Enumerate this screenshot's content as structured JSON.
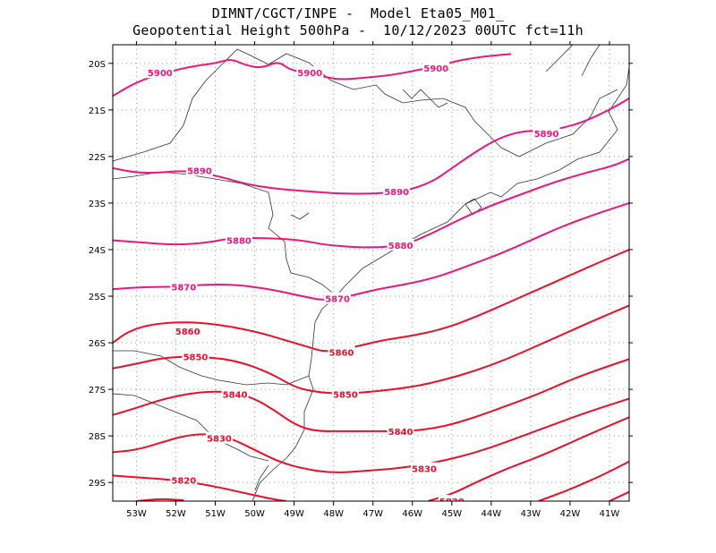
{
  "header": {
    "line1": "DIMNT/CGCT/INPE -  Model Eta05_M01_",
    "line2": "Geopotential Height 500hPa -  10/12/2023 00UTC fct=11h"
  },
  "chart_data": {
    "type": "contour-map",
    "title": "Geopotential Height 500hPa",
    "xlim": [
      -53.6,
      -40.5
    ],
    "ylim": [
      -29.4,
      -19.6
    ],
    "x_ticks": [
      "53W",
      "52W",
      "51W",
      "50W",
      "49W",
      "48W",
      "47W",
      "46W",
      "45W",
      "44W",
      "43W",
      "42W",
      "41W"
    ],
    "y_ticks": [
      "20S",
      "21S",
      "22S",
      "23S",
      "24S",
      "25S",
      "26S",
      "27S",
      "28S",
      "29S"
    ],
    "grid": true,
    "colors": {
      "high": "#e8187e",
      "low": "#e8102a",
      "coast": "#333333"
    },
    "contours": [
      {
        "level": "5900",
        "label": "5900",
        "label_points": [
          [
            -52.4,
            -20.2
          ],
          [
            -48.6,
            -20.2
          ],
          [
            -45.4,
            -20.1
          ]
        ],
        "points": [
          [
            -53.6,
            -20.7
          ],
          [
            -53.0,
            -20.4
          ],
          [
            -52.3,
            -20.2
          ],
          [
            -51.5,
            -20.05
          ],
          [
            -51.0,
            -20.0
          ],
          [
            -50.6,
            -19.9
          ],
          [
            -50.2,
            -20.05
          ],
          [
            -49.8,
            -20.1
          ],
          [
            -49.4,
            -19.95
          ],
          [
            -49.1,
            -20.15
          ],
          [
            -48.6,
            -20.2
          ],
          [
            -48.2,
            -20.3
          ],
          [
            -47.8,
            -20.35
          ],
          [
            -47.1,
            -20.3
          ],
          [
            -46.5,
            -20.25
          ],
          [
            -45.9,
            -20.15
          ],
          [
            -45.3,
            -20.05
          ],
          [
            -44.9,
            -19.95
          ],
          [
            -44.2,
            -19.85
          ],
          [
            -43.5,
            -19.8
          ]
        ]
      },
      {
        "level": "5890",
        "label": "5890",
        "label_points": [
          [
            -51.4,
            -22.3
          ],
          [
            -46.4,
            -22.75
          ],
          [
            -42.6,
            -21.5
          ]
        ],
        "points": [
          [
            -53.6,
            -22.25
          ],
          [
            -53.0,
            -22.35
          ],
          [
            -52.4,
            -22.35
          ],
          [
            -51.8,
            -22.3
          ],
          [
            -51.0,
            -22.4
          ],
          [
            -50.2,
            -22.6
          ],
          [
            -49.4,
            -22.7
          ],
          [
            -48.6,
            -22.75
          ],
          [
            -47.8,
            -22.8
          ],
          [
            -47.0,
            -22.8
          ],
          [
            -46.2,
            -22.75
          ],
          [
            -45.5,
            -22.55
          ],
          [
            -45.0,
            -22.25
          ],
          [
            -44.4,
            -21.9
          ],
          [
            -43.8,
            -21.6
          ],
          [
            -43.2,
            -21.45
          ],
          [
            -42.6,
            -21.45
          ],
          [
            -42.0,
            -21.35
          ],
          [
            -41.5,
            -21.2
          ],
          [
            -40.9,
            -20.95
          ],
          [
            -40.5,
            -20.75
          ]
        ]
      },
      {
        "level": "5880",
        "label": "5880",
        "label_points": [
          [
            -50.4,
            -23.8
          ],
          [
            -46.3,
            -23.9
          ]
        ],
        "points": [
          [
            -53.6,
            -23.8
          ],
          [
            -52.8,
            -23.85
          ],
          [
            -52.0,
            -23.9
          ],
          [
            -51.2,
            -23.85
          ],
          [
            -50.6,
            -23.75
          ],
          [
            -49.6,
            -23.75
          ],
          [
            -48.8,
            -23.8
          ],
          [
            -48.2,
            -23.9
          ],
          [
            -47.4,
            -23.95
          ],
          [
            -46.8,
            -23.95
          ],
          [
            -46.2,
            -23.9
          ],
          [
            -45.5,
            -23.65
          ],
          [
            -44.8,
            -23.35
          ],
          [
            -44.0,
            -23.05
          ],
          [
            -43.2,
            -22.8
          ],
          [
            -42.4,
            -22.55
          ],
          [
            -41.6,
            -22.35
          ],
          [
            -40.9,
            -22.2
          ],
          [
            -40.5,
            -22.05
          ]
        ]
      },
      {
        "level": "5870",
        "label": "5870",
        "label_points": [
          [
            -51.8,
            -24.8
          ],
          [
            -47.9,
            -25.05
          ]
        ],
        "points": [
          [
            -53.6,
            -24.85
          ],
          [
            -52.8,
            -24.8
          ],
          [
            -52.0,
            -24.8
          ],
          [
            -51.3,
            -24.75
          ],
          [
            -50.5,
            -24.75
          ],
          [
            -49.6,
            -24.85
          ],
          [
            -48.8,
            -25.0
          ],
          [
            -48.2,
            -25.1
          ],
          [
            -47.6,
            -25.0
          ],
          [
            -46.9,
            -24.85
          ],
          [
            -46.2,
            -24.75
          ],
          [
            -45.4,
            -24.6
          ],
          [
            -44.6,
            -24.35
          ],
          [
            -43.8,
            -24.1
          ],
          [
            -43.0,
            -23.8
          ],
          [
            -42.2,
            -23.5
          ],
          [
            -41.4,
            -23.25
          ],
          [
            -40.5,
            -23.0
          ]
        ]
      },
      {
        "level": "5860",
        "label": "5860",
        "label_points": [
          [
            -51.7,
            -25.75
          ],
          [
            -47.8,
            -26.2
          ]
        ],
        "points": [
          [
            -53.6,
            -26.0
          ],
          [
            -53.2,
            -25.75
          ],
          [
            -52.6,
            -25.6
          ],
          [
            -51.8,
            -25.55
          ],
          [
            -51.0,
            -25.6
          ],
          [
            -50.0,
            -25.75
          ],
          [
            -49.2,
            -25.95
          ],
          [
            -48.6,
            -26.1
          ],
          [
            -48.2,
            -26.2
          ],
          [
            -47.5,
            -26.1
          ],
          [
            -46.8,
            -25.95
          ],
          [
            -46.0,
            -25.85
          ],
          [
            -45.2,
            -25.7
          ],
          [
            -44.4,
            -25.45
          ],
          [
            -43.6,
            -25.15
          ],
          [
            -42.8,
            -24.85
          ],
          [
            -42.0,
            -24.55
          ],
          [
            -41.2,
            -24.25
          ],
          [
            -40.5,
            -24.0
          ]
        ]
      },
      {
        "level": "5850",
        "label": "5850",
        "label_points": [
          [
            -51.5,
            -26.3
          ],
          [
            -47.7,
            -27.1
          ]
        ],
        "points": [
          [
            -53.6,
            -26.55
          ],
          [
            -53.0,
            -26.45
          ],
          [
            -52.2,
            -26.3
          ],
          [
            -51.2,
            -26.3
          ],
          [
            -50.4,
            -26.4
          ],
          [
            -49.6,
            -26.65
          ],
          [
            -49.0,
            -26.95
          ],
          [
            -48.5,
            -27.05
          ],
          [
            -47.8,
            -27.1
          ],
          [
            -47.0,
            -27.05
          ],
          [
            -46.0,
            -26.95
          ],
          [
            -45.2,
            -26.8
          ],
          [
            -44.4,
            -26.6
          ],
          [
            -43.6,
            -26.35
          ],
          [
            -42.8,
            -26.05
          ],
          [
            -42.0,
            -25.75
          ],
          [
            -41.2,
            -25.45
          ],
          [
            -40.5,
            -25.2
          ]
        ]
      },
      {
        "level": "5840",
        "label": "5840",
        "label_points": [
          [
            -50.5,
            -27.1
          ],
          [
            -46.3,
            -27.9
          ]
        ],
        "points": [
          [
            -53.6,
            -27.55
          ],
          [
            -53.0,
            -27.4
          ],
          [
            -52.3,
            -27.2
          ],
          [
            -51.4,
            -27.05
          ],
          [
            -50.6,
            -27.05
          ],
          [
            -50.0,
            -27.2
          ],
          [
            -49.5,
            -27.45
          ],
          [
            -49.0,
            -27.75
          ],
          [
            -48.5,
            -27.9
          ],
          [
            -47.7,
            -27.9
          ],
          [
            -46.8,
            -27.9
          ],
          [
            -46.0,
            -27.9
          ],
          [
            -45.2,
            -27.8
          ],
          [
            -44.4,
            -27.6
          ],
          [
            -43.6,
            -27.35
          ],
          [
            -42.8,
            -27.1
          ],
          [
            -42.0,
            -26.8
          ],
          [
            -41.2,
            -26.55
          ],
          [
            -40.5,
            -26.35
          ]
        ]
      },
      {
        "level": "5830",
        "label": "5830",
        "label_points": [
          [
            -50.9,
            -28.05
          ],
          [
            -45.7,
            -28.7
          ]
        ],
        "points": [
          [
            -53.6,
            -28.35
          ],
          [
            -53.0,
            -28.3
          ],
          [
            -52.4,
            -28.15
          ],
          [
            -51.8,
            -28.0
          ],
          [
            -51.2,
            -27.95
          ],
          [
            -50.6,
            -28.05
          ],
          [
            -50.0,
            -28.3
          ],
          [
            -49.4,
            -28.55
          ],
          [
            -48.8,
            -28.7
          ],
          [
            -48.0,
            -28.8
          ],
          [
            -47.2,
            -28.75
          ],
          [
            -46.4,
            -28.7
          ],
          [
            -45.6,
            -28.6
          ],
          [
            -44.8,
            -28.45
          ],
          [
            -44.0,
            -28.25
          ],
          [
            -43.2,
            -28.0
          ],
          [
            -42.4,
            -27.75
          ],
          [
            -41.6,
            -27.5
          ],
          [
            -40.5,
            -27.2
          ]
        ]
      },
      {
        "level": "5820",
        "label": "5820",
        "label_points": [
          [
            -51.8,
            -28.95
          ],
          [
            -45.0,
            -29.4
          ]
        ],
        "points": [
          [
            -53.6,
            -28.85
          ],
          [
            -52.8,
            -28.9
          ],
          [
            -52.0,
            -28.95
          ],
          [
            -51.2,
            -29.05
          ],
          [
            -50.4,
            -29.2
          ],
          [
            -49.6,
            -29.35
          ],
          [
            -49.2,
            -29.4
          ]
        ],
        "points2": [
          [
            -45.6,
            -29.4
          ],
          [
            -45.0,
            -29.25
          ],
          [
            -44.4,
            -29.0
          ],
          [
            -43.6,
            -28.7
          ],
          [
            -42.8,
            -28.45
          ],
          [
            -42.0,
            -28.15
          ],
          [
            -41.2,
            -27.85
          ],
          [
            -40.5,
            -27.6
          ]
        ]
      },
      {
        "level": "5810",
        "label": "",
        "label_points": [],
        "points": [
          [
            -53.0,
            -29.4
          ],
          [
            -52.4,
            -29.35
          ],
          [
            -51.8,
            -29.38
          ]
        ],
        "points2": [
          [
            -42.8,
            -29.4
          ],
          [
            -42.0,
            -29.15
          ],
          [
            -41.2,
            -28.85
          ],
          [
            -40.5,
            -28.55
          ]
        ]
      },
      {
        "level": "5800",
        "label": "",
        "label_points": [],
        "points": [
          [
            -41.0,
            -29.4
          ],
          [
            -40.5,
            -29.2
          ]
        ]
      }
    ]
  }
}
